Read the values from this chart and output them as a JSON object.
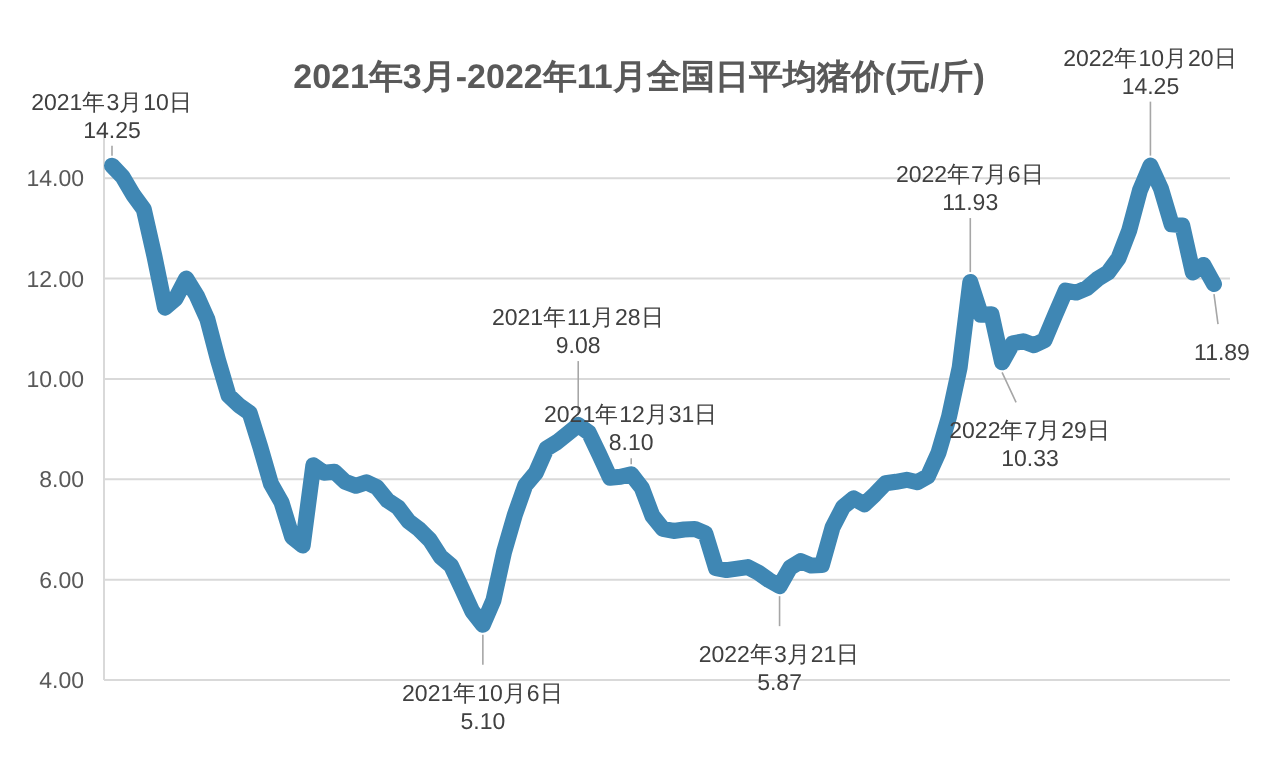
{
  "chart_data": {
    "type": "line",
    "title": "2021年3月-2022年11月全国日平均猪价(元/斤)",
    "line_style": "solid",
    "grid": "y",
    "tick_labels": "y",
    "ylim": [
      4,
      15
    ],
    "yticks": [
      {
        "value": 4,
        "label": "4.00"
      },
      {
        "value": 6,
        "label": "6.00"
      },
      {
        "value": 8,
        "label": "8.00"
      },
      {
        "value": 10,
        "label": "10.00"
      },
      {
        "value": 12,
        "label": "12.00"
      },
      {
        "value": 14,
        "label": "14.00"
      }
    ],
    "categories": [
      null,
      null,
      null,
      null,
      null,
      null,
      null,
      null,
      null,
      null,
      null,
      null,
      null,
      null,
      null,
      null,
      null,
      null,
      null,
      null,
      null,
      null,
      null,
      null,
      null,
      null,
      null,
      null,
      null,
      null,
      null,
      null,
      null,
      null,
      null,
      null,
      null,
      null,
      null,
      null,
      null,
      null,
      null,
      null,
      null,
      null,
      null,
      null,
      null,
      null,
      null,
      null,
      null,
      null,
      null,
      null,
      null,
      null,
      null,
      null,
      null,
      null,
      null,
      null,
      null,
      null,
      null,
      null,
      null,
      null,
      null,
      null,
      null,
      null,
      null,
      null,
      null,
      null,
      null,
      null,
      null,
      null,
      null,
      null,
      null,
      null,
      null,
      null,
      null,
      null,
      null,
      null,
      null,
      null,
      null,
      null,
      null,
      null,
      null,
      null,
      null,
      null,
      null,
      null,
      null
    ],
    "series": [
      {
        "color": "#3f87b4",
        "values": [
          14.25,
          14.03,
          13.67,
          13.38,
          12.45,
          11.42,
          11.6,
          12.0,
          11.66,
          11.19,
          10.38,
          9.67,
          9.47,
          9.32,
          8.64,
          7.91,
          7.54,
          6.85,
          6.68,
          8.28,
          8.13,
          8.15,
          7.95,
          7.87,
          7.94,
          7.84,
          7.58,
          7.44,
          7.16,
          7.0,
          6.79,
          6.46,
          6.28,
          5.83,
          5.37,
          5.1,
          5.59,
          6.55,
          7.28,
          7.88,
          8.13,
          8.61,
          8.74,
          8.91,
          9.08,
          8.93,
          8.49,
          8.03,
          8.05,
          8.1,
          7.83,
          7.27,
          7.01,
          6.97,
          7.0,
          7.01,
          6.92,
          6.23,
          6.19,
          6.22,
          6.25,
          6.14,
          5.99,
          5.87,
          6.24,
          6.37,
          6.28,
          6.29,
          7.04,
          7.45,
          7.62,
          7.5,
          7.7,
          7.92,
          7.95,
          7.99,
          7.94,
          8.06,
          8.53,
          9.25,
          10.23,
          11.93,
          11.28,
          11.29,
          10.33,
          10.71,
          10.75,
          10.67,
          10.77,
          11.27,
          11.76,
          11.72,
          11.81,
          11.99,
          12.12,
          12.41,
          12.96,
          13.75,
          14.25,
          13.79,
          13.08,
          13.06,
          12.12,
          12.27,
          11.89
        ]
      }
    ],
    "annotations": [
      {
        "text": "2021年3月10日\n14.25",
        "y": 14.25
      },
      {
        "text": "2021年10月6日\n5.10",
        "y": 5.1
      },
      {
        "text": "2021年11月28日\n9.08",
        "y": 9.08
      },
      {
        "text": "2021年12月31日\n8.10",
        "y": 8.1
      },
      {
        "text": "2022年3月21日\n5.87",
        "y": 5.87
      },
      {
        "text": "2022年7月6日\n11.93",
        "y": 11.93
      },
      {
        "text": "2022年7月29日\n10.33",
        "y": 10.33
      },
      {
        "text": "2022年10月20日\n14.25",
        "y": 14.25
      },
      {
        "text": "11.89",
        "y": 11.89
      }
    ]
  }
}
